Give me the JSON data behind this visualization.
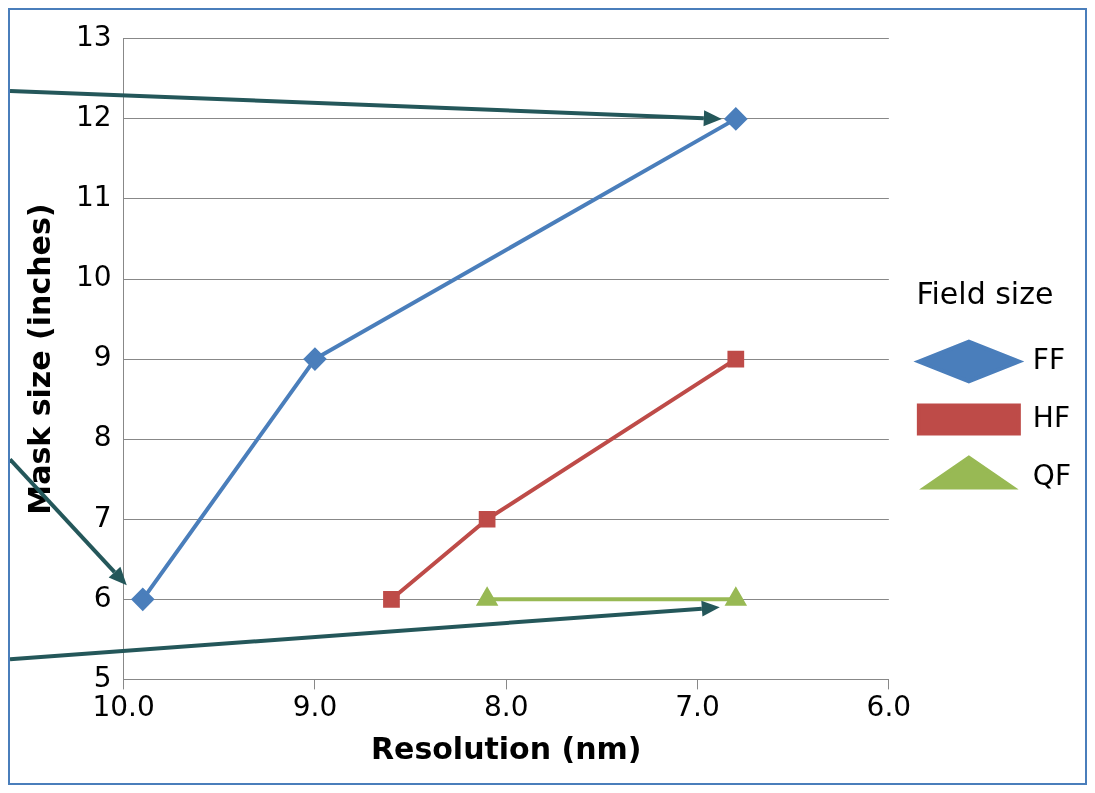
{
  "chart_data": {
    "type": "line",
    "xlabel": "Resolution (nm)",
    "ylabel": "Mask size (inches)",
    "legend_title": "Field size",
    "legend": "right",
    "grid": "y",
    "line_style": "solid",
    "xlim": [
      10,
      6
    ],
    "xticks": [
      {
        "value": 10,
        "label": "10.0"
      },
      {
        "value": 9,
        "label": "9.0"
      },
      {
        "value": 8,
        "label": "8.0"
      },
      {
        "value": 7,
        "label": "7.0"
      },
      {
        "value": 6,
        "label": "6.0"
      }
    ],
    "ylim": [
      5,
      13
    ],
    "yticks": [
      5,
      6,
      7,
      8,
      9,
      10,
      11,
      12,
      13
    ],
    "series": [
      {
        "name": "FF",
        "color": "#4a7ebb",
        "marker": "diamond",
        "x": [
          9.9,
          9.0,
          6.8
        ],
        "values": [
          6,
          9,
          12
        ]
      },
      {
        "name": "HF",
        "color": "#be4b48",
        "marker": "square",
        "x": [
          8.6,
          8.1,
          6.8
        ],
        "values": [
          6,
          7,
          9
        ]
      },
      {
        "name": "QF",
        "color": "#98b954",
        "marker": "triangle",
        "x": [
          8.1,
          6.8
        ],
        "values": [
          6,
          6
        ]
      }
    ]
  }
}
